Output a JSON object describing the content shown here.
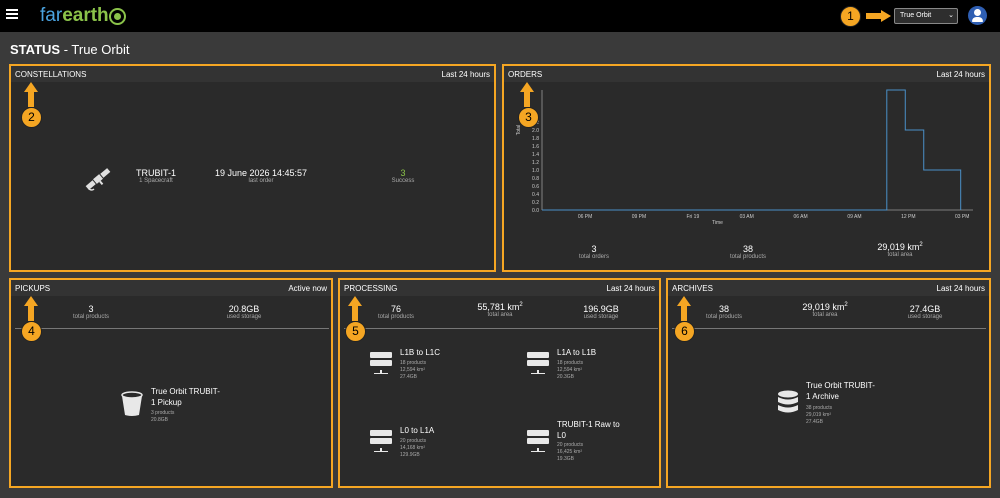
{
  "header": {
    "logo_part1": "far",
    "logo_part2": "earth",
    "org_select": "True Orbit"
  },
  "page": {
    "title_bold": "STATUS",
    "title_rest": "- True Orbit"
  },
  "constellations": {
    "title": "CONSTELLATIONS",
    "range": "Last 24 hours",
    "name": "TRUBIT-1",
    "spacecraft": "1 Spacecraft",
    "last_order_value": "19 June 2026 14:45:57",
    "last_order_label": "last order",
    "success_value": "3",
    "success_label": "Success",
    "success_color": "#8bc34a"
  },
  "orders": {
    "title": "ORDERS",
    "range": "Last 24 hours",
    "total_orders": "3",
    "total_orders_label": "total orders",
    "total_products": "38",
    "total_products_label": "total products",
    "total_area": "29,019 km",
    "total_area_sup": "2",
    "total_area_label": "total area"
  },
  "chart_data": {
    "type": "line",
    "ylabel": "Total",
    "xlabel": "Time",
    "yticks": [
      "0.0",
      "0.2",
      "0.4",
      "0.6",
      "0.8",
      "1.0",
      "1.2",
      "1.4",
      "1.6",
      "1.8",
      "2.0",
      "2.2"
    ],
    "xticks": [
      "06 PM",
      "09 PM",
      "Fri 19",
      "03 AM",
      "06 AM",
      "09 AM",
      "12 PM",
      "03 PM"
    ],
    "ylim": [
      0,
      3.0
    ],
    "series": [
      {
        "color": "#4a90c8",
        "x": [
          0,
          11.2,
          11.2,
          11.8,
          11.8,
          12.4,
          12.4,
          13.6,
          13.6
        ],
        "values": [
          0,
          0,
          3,
          3,
          2,
          2,
          1,
          1,
          0
        ]
      }
    ]
  },
  "pickups": {
    "title": "PICKUPS",
    "range": "Active now",
    "products": "3",
    "products_label": "total products",
    "storage": "20.8GB",
    "storage_label": "used storage",
    "item_name_1": "True Orbit TRUBIT-",
    "item_name_2": "1 Pickup",
    "item_products": "3 products",
    "item_size": "20.8GB"
  },
  "processing": {
    "title": "PROCESSING",
    "range": "Last 24 hours",
    "products": "76",
    "products_label": "total products",
    "area": "55,781 km",
    "area_sup": "2",
    "area_label": "total area",
    "storage": "196.9GB",
    "storage_label": "used storage",
    "items": [
      {
        "name": "L1B to L1C",
        "products": "18 products",
        "area": "12,594 km²",
        "size": "27.4GB"
      },
      {
        "name": "L1A to L1B",
        "products": "18 products",
        "area": "12,594 km²",
        "size": "20.3GB"
      },
      {
        "name": "L0 to L1A",
        "products": "20 products",
        "area": "14,168 km²",
        "size": "129.9GB"
      },
      {
        "name_1": "TRUBIT-1 Raw to",
        "name_2": "L0",
        "products": "20 products",
        "area": "16,425 km²",
        "size": "19.3GB"
      }
    ]
  },
  "archives": {
    "title": "ARCHIVES",
    "range": "Last 24 hours",
    "products": "38",
    "products_label": "total products",
    "area": "29,019 km",
    "area_sup": "2",
    "area_label": "total area",
    "storage": "27.4GB",
    "storage_label": "used storage",
    "item_name_1": "True Orbit TRUBIT-",
    "item_name_2": "1 Archive",
    "item_products": "38 products",
    "item_area": "29,019 km²",
    "item_size": "27.4GB"
  },
  "callouts": [
    "1",
    "2",
    "3",
    "4",
    "5",
    "6"
  ]
}
